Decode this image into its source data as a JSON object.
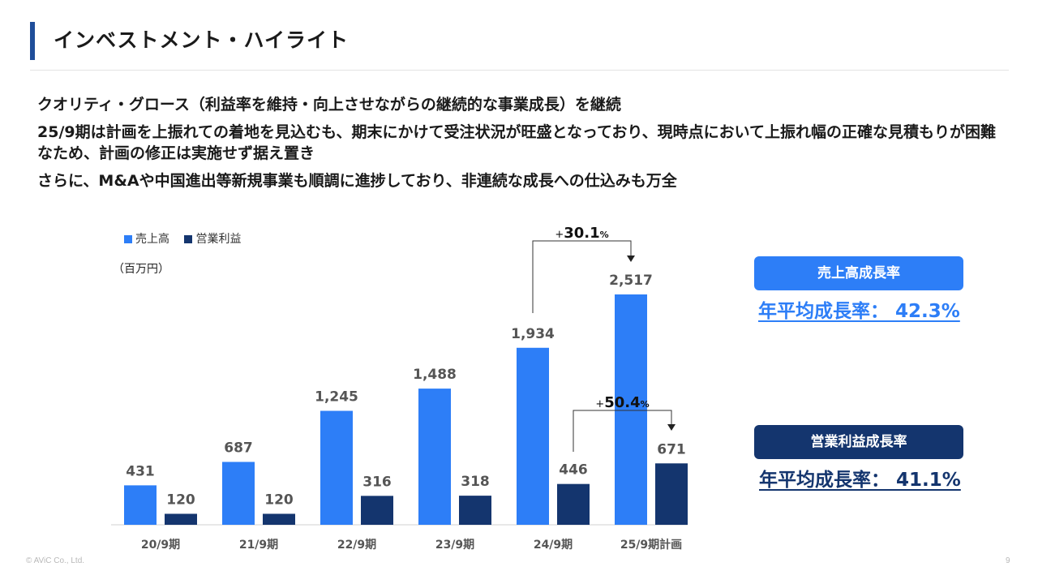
{
  "page": {
    "title": "インベストメント・ハイライト",
    "bullets": [
      "クオリティ・グロース（利益率を維持・向上させながらの継続的な事業成長）を継続",
      "25/9期は計画を上振れての着地を見込むも、期末にかけて受注状況が旺盛となっており、現時点において上振れ幅の正確な見積もりが困難なため、計画の修正は実施せず据え置き",
      "さらに、M&Aや中国進出等新規事業も順調に進捗しており、非連続な成長への仕込みも万全"
    ],
    "copyright": "© AViC Co., Ltd.",
    "page_number": "9"
  },
  "colors": {
    "sales": "#2d7ef7",
    "profit": "#14356e",
    "title_accent": "#1f4e9a"
  },
  "chart_data": {
    "type": "bar",
    "unit_label": "（百万円）",
    "categories": [
      "20/9期",
      "21/9期",
      "22/9期",
      "23/9期",
      "24/9期",
      "25/9期計画"
    ],
    "series": [
      {
        "name": "売上高",
        "values": [
          431,
          687,
          1245,
          1488,
          1934,
          2517
        ],
        "labels": [
          "431",
          "687",
          "1,245",
          "1,488",
          "1,934",
          "2,517"
        ]
      },
      {
        "name": "営業利益",
        "values": [
          120,
          120,
          316,
          318,
          446,
          671
        ],
        "labels": [
          "120",
          "120",
          "316",
          "318",
          "446",
          "671"
        ]
      }
    ],
    "annotations": [
      {
        "text_sign": "+",
        "text_num": "30.1",
        "text_unit": "%",
        "series": 0,
        "from": 4,
        "to": 5
      },
      {
        "text_sign": "+",
        "text_num": "50.4",
        "text_unit": "%",
        "series": 1,
        "from": 4,
        "to": 5
      }
    ]
  },
  "growth": {
    "sales": {
      "label": "売上高成長率",
      "rate_text": "年平均成長率： 42.3%"
    },
    "profit": {
      "label": "営業利益成長率",
      "rate_text": "年平均成長率： 41.1%"
    }
  }
}
